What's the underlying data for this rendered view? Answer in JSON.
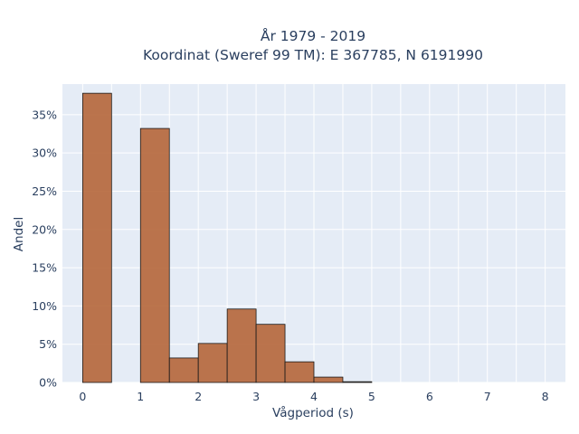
{
  "chart_data": {
    "type": "bar",
    "title_line1": "År 1979 - 2019",
    "title_line2": "Koordinat (Sweref 99 TM): E 367785, N 6191990",
    "xlabel": "Vågperiod (s)",
    "ylabel": "Andel",
    "xlim": [
      -0.35,
      8.35
    ],
    "ylim": [
      0,
      39
    ],
    "xticks": [
      0,
      1,
      2,
      3,
      4,
      5,
      6,
      7,
      8
    ],
    "yticks": [
      0,
      5,
      10,
      15,
      20,
      25,
      30,
      35
    ],
    "ytick_suffix": "%",
    "bin_width": 0.5,
    "bins": [
      {
        "x0": 0.0,
        "value": 37.8
      },
      {
        "x0": 1.0,
        "value": 33.2
      },
      {
        "x0": 1.5,
        "value": 3.2
      },
      {
        "x0": 2.0,
        "value": 5.1
      },
      {
        "x0": 2.5,
        "value": 9.6
      },
      {
        "x0": 3.0,
        "value": 7.6
      },
      {
        "x0": 3.5,
        "value": 2.7
      },
      {
        "x0": 4.0,
        "value": 0.7
      },
      {
        "x0": 4.5,
        "value": 0.1
      }
    ],
    "bar_color": "#b5663a",
    "bar_edge_color": "#1a1a1a",
    "plot_background": "#e5ecf6",
    "grid": true,
    "grid_color": "#ffffff"
  }
}
